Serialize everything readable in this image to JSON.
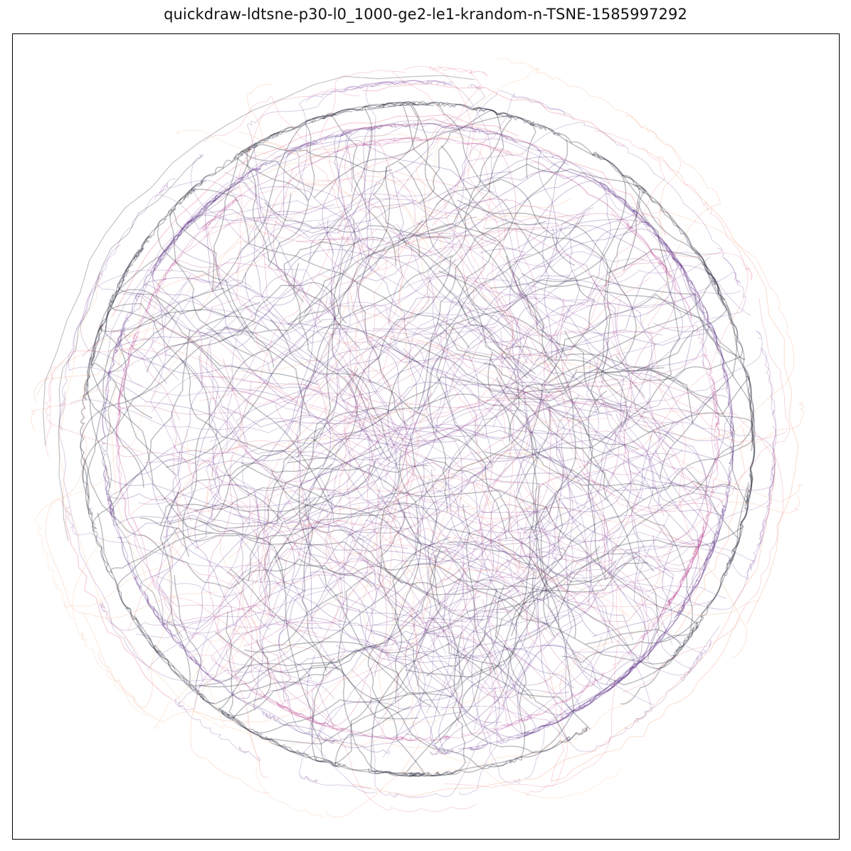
{
  "chart_data": {
    "type": "line",
    "title": "quickdraw-ldtsne-p30-l0_1000-ge2-le1-krandom-n-TSNE-1585997292",
    "xlabel": "",
    "ylabel": "",
    "xticks": [],
    "yticks": [],
    "grid": false,
    "legend": "none",
    "description_of_marks": "dense tangle of semi-transparent trajectory curves filling a roughly circular region",
    "colors": {
      "dark": "#1a1a2e",
      "purple": "#5b2a86",
      "violet": "#8e5aa8",
      "magenta": "#b5368a",
      "red": "#e0445a",
      "orange": "#f08a5d",
      "light_orange": "#f7b98a"
    }
  }
}
